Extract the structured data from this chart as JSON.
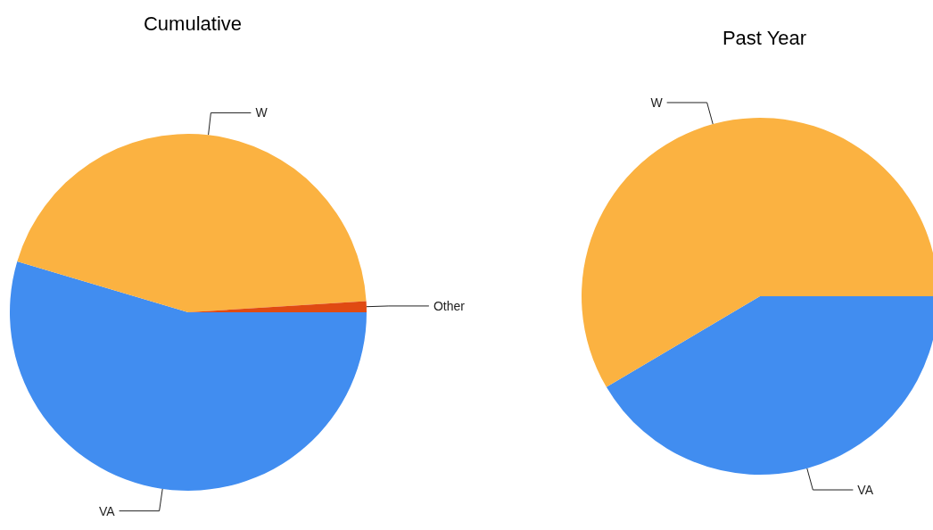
{
  "chart_data": [
    {
      "type": "pie",
      "title": "Cumulative",
      "categories": [
        "VA",
        "W",
        "Other"
      ],
      "values": [
        54.6,
        44.4,
        1.0
      ],
      "colors": [
        "#418df0",
        "#fbb241",
        "#e04a12"
      ]
    },
    {
      "type": "pie",
      "title": "Past Year",
      "categories": [
        "VA",
        "W"
      ],
      "values": [
        41.5,
        58.5
      ],
      "colors": [
        "#418df0",
        "#fbb241"
      ]
    }
  ]
}
